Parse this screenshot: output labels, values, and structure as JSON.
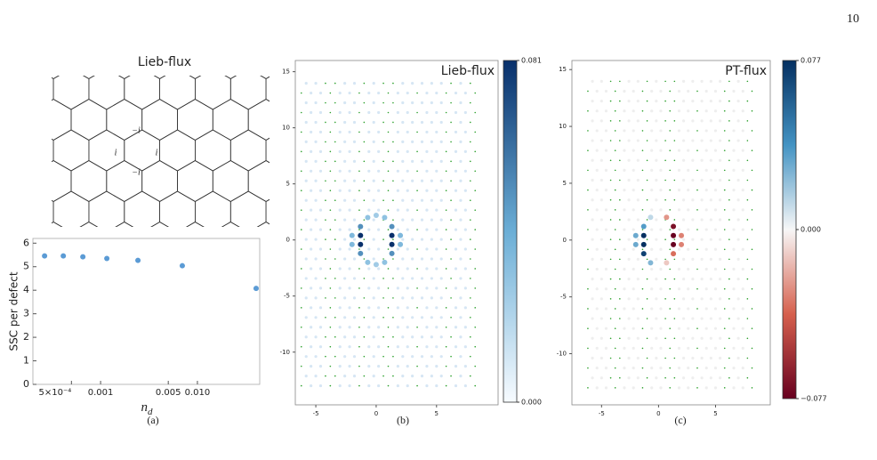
{
  "page_number": "10",
  "figure": {
    "diagram": {
      "title": "Lieb-flux",
      "labels": [
        "−i",
        "i",
        "i",
        "−i"
      ]
    },
    "captions": [
      "(a)",
      "(b)",
      "(c)"
    ]
  },
  "chart_data": [
    {
      "type": "scatter",
      "y_label": "SSC per defect",
      "x_label": {
        "base": "n",
        "subscript": "d"
      },
      "x": [
        0.000264,
        0.000412,
        0.000656,
        0.00116,
        0.00243,
        0.00698,
        0.0404
      ],
      "values": [
        5.46,
        5.46,
        5.42,
        5.35,
        5.27,
        5.04,
        4.08
      ],
      "color": "#5b9bd5",
      "xscale": "log",
      "xlim": [
        0.0002,
        0.044
      ],
      "ylim": [
        0,
        6.2
      ],
      "xticks": [
        {
          "value": 0.0005,
          "label": "5×10⁻⁴"
        },
        0.001,
        0.005,
        {
          "value": 0.01,
          "label": "0.010"
        }
      ],
      "yticks": [
        0,
        1,
        2,
        3,
        4,
        5,
        6
      ]
    },
    {
      "type": "site-map",
      "title": "Lieb-flux",
      "x": [
        -1.3,
        -1.3,
        1.3,
        1.3,
        -1.3,
        -1.3,
        1.3,
        1.3,
        -2.0,
        -2.0,
        2.0,
        2.0,
        -0.7,
        0.7,
        -0.7,
        0.7,
        0.0,
        0.0
      ],
      "y": [
        0.4,
        -0.4,
        0.4,
        -0.4,
        1.2,
        -1.2,
        1.2,
        -1.2,
        0.4,
        -0.4,
        0.4,
        -0.4,
        2.0,
        2.0,
        -2.0,
        -2.0,
        2.2,
        -2.2
      ],
      "values": [
        0.081,
        0.081,
        0.081,
        0.081,
        0.05,
        0.05,
        0.05,
        0.05,
        0.035,
        0.035,
        0.035,
        0.035,
        0.03,
        0.03,
        0.03,
        0.03,
        0.025,
        0.025
      ],
      "colormap": [
        "#f7fbff",
        "#6baed6",
        "#08306b"
      ],
      "clim": [
        0,
        0.081
      ],
      "cticks": [
        0.081,
        {
          "value": 0,
          "label": "0.000"
        }
      ],
      "xlim": [
        -6.7,
        10.1
      ],
      "ylim": [
        -14.7,
        16.0
      ],
      "xticks": [
        -5,
        0,
        5
      ],
      "yticks": [
        -10,
        -5,
        0,
        5,
        10,
        15
      ]
    },
    {
      "type": "site-map",
      "title": "PT-flux",
      "x": [
        -1.3,
        -1.3,
        -1.3,
        -1.3,
        1.3,
        1.3,
        1.3,
        1.3,
        -2.0,
        -2.0,
        2.0,
        2.0,
        -0.7,
        0.7,
        -0.7,
        0.7
      ],
      "y": [
        0.4,
        -0.4,
        -1.2,
        1.2,
        0.4,
        -0.4,
        1.2,
        -1.2,
        0.4,
        -0.4,
        0.4,
        -0.4,
        -2.0,
        2.0,
        2.0,
        -2.0
      ],
      "values": [
        0.077,
        0.077,
        0.07,
        0.035,
        -0.077,
        -0.077,
        -0.07,
        -0.035,
        0.03,
        0.03,
        -0.03,
        -0.03,
        0.025,
        -0.025,
        0.012,
        -0.012
      ],
      "colormap": [
        "#67001f",
        "#d6604d",
        "#f7f7f7",
        "#4393c3",
        "#053061"
      ],
      "clim": [
        -0.077,
        0.077
      ],
      "cticks": [
        0.077,
        {
          "value": 0,
          "label": "0.000"
        },
        {
          "value": -0.077,
          "label": "−0.077"
        }
      ],
      "xlim": [
        -7.6,
        9.8
      ],
      "ylim": [
        -14.5,
        15.8
      ],
      "xticks": [
        -5,
        0,
        5
      ],
      "yticks": [
        -10,
        -5,
        0,
        5,
        10,
        15
      ]
    }
  ]
}
